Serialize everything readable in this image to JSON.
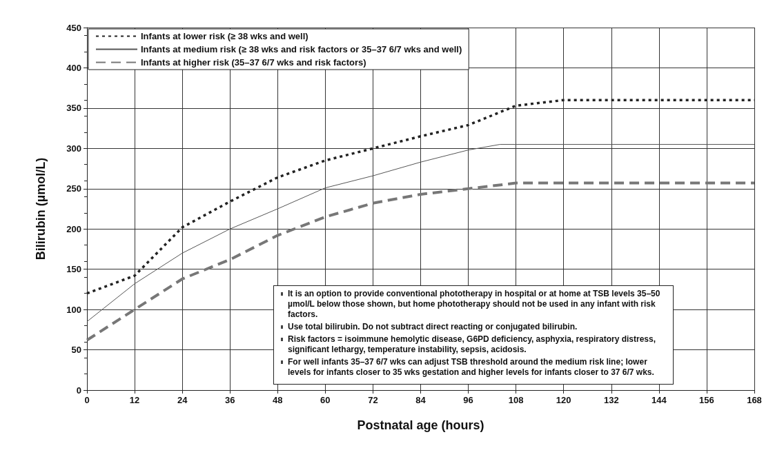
{
  "chart_data": {
    "type": "line",
    "xlabel": "Postnatal age (hours)",
    "ylabel": "Bilirubin (µmol/L)",
    "xlim": [
      0,
      168
    ],
    "xticks": [
      0,
      12,
      24,
      36,
      48,
      60,
      72,
      84,
      96,
      108,
      120,
      132,
      144,
      156,
      168
    ],
    "ylim": [
      0,
      450
    ],
    "yticks": [
      0,
      50,
      100,
      150,
      200,
      250,
      300,
      350,
      400,
      450
    ],
    "grid": true,
    "legend": "top left",
    "marker": "none",
    "series": [
      {
        "name": "Infants at lower risk (≥ 38 wks and well)",
        "color": "#222222",
        "line_style": "dotted",
        "x": [
          0,
          12,
          24,
          36,
          48,
          60,
          72,
          84,
          96,
          108,
          120,
          168
        ],
        "values": [
          120,
          142,
          202,
          234,
          264,
          285,
          300,
          315,
          329,
          353,
          360,
          360
        ]
      },
      {
        "name": "Infants at medium risk (≥ 38 wks and risk factors or 35–37 6/7 wks and well)",
        "color": "#555555",
        "line_style": "solid",
        "x": [
          0,
          12,
          24,
          36,
          48,
          60,
          72,
          84,
          96,
          104,
          168
        ],
        "values": [
          85,
          132,
          170,
          200,
          225,
          251,
          266,
          283,
          298,
          305,
          305
        ]
      },
      {
        "name": "Infants at higher risk (35–37 6/7 wks and risk factors)",
        "color": "#777777",
        "line_style": "dashed",
        "x": [
          0,
          12,
          24,
          36,
          48,
          60,
          72,
          84,
          96,
          108,
          168
        ],
        "values": [
          62,
          100,
          138,
          162,
          192,
          215,
          232,
          243,
          250,
          257,
          257
        ]
      }
    ],
    "annotations": [
      "It is an option to provide conventional phototherapy in hospital or at home at TSB levels 35–50 µmol/L below those shown, but home phototherapy should not be used in any infant with risk factors.",
      "Use total bilirubin. Do not subtract direct reacting or conjugated bilirubin.",
      "Risk factors = isoimmune hemolytic disease, G6PD deficiency, asphyxia, respiratory distress, significant lethargy, temperature instability, sepsis, acidosis.",
      "For well infants 35–37 6/7 wks can adjust TSB threshold around the medium risk line; lower levels for infants closer to 35 wks gestation and higher levels for infants closer to 37 6/7 wks."
    ]
  }
}
